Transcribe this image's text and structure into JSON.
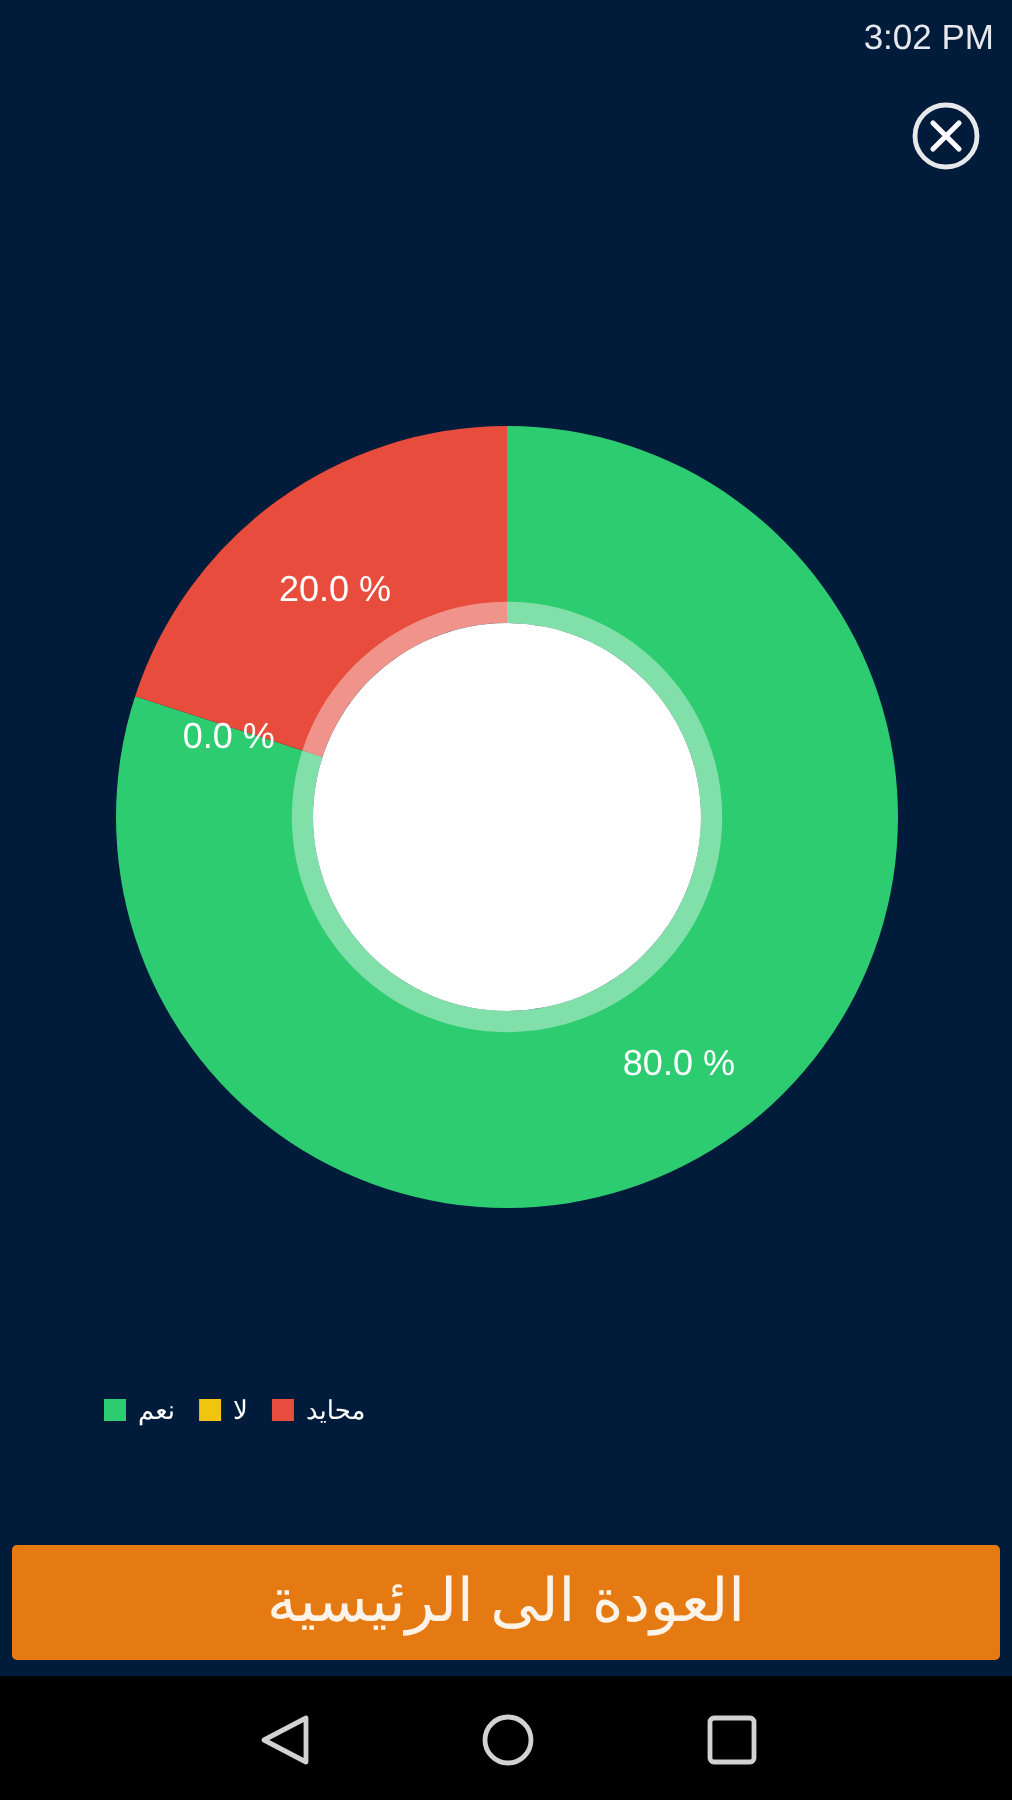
{
  "chart_data": {
    "type": "donut",
    "categories": [
      "نعم",
      "لا",
      "محايد"
    ],
    "values": [
      80,
      0,
      20
    ],
    "colors": [
      "#2ecc71",
      "#f1c40f",
      "#e74c3c"
    ],
    "value_labels": [
      "80.0 %",
      "0.0 %",
      "20.0 %"
    ],
    "legend": "bottom left",
    "annotations": [
      "3:02 PM",
      "العودة الى الرئيسية"
    ]
  }
}
